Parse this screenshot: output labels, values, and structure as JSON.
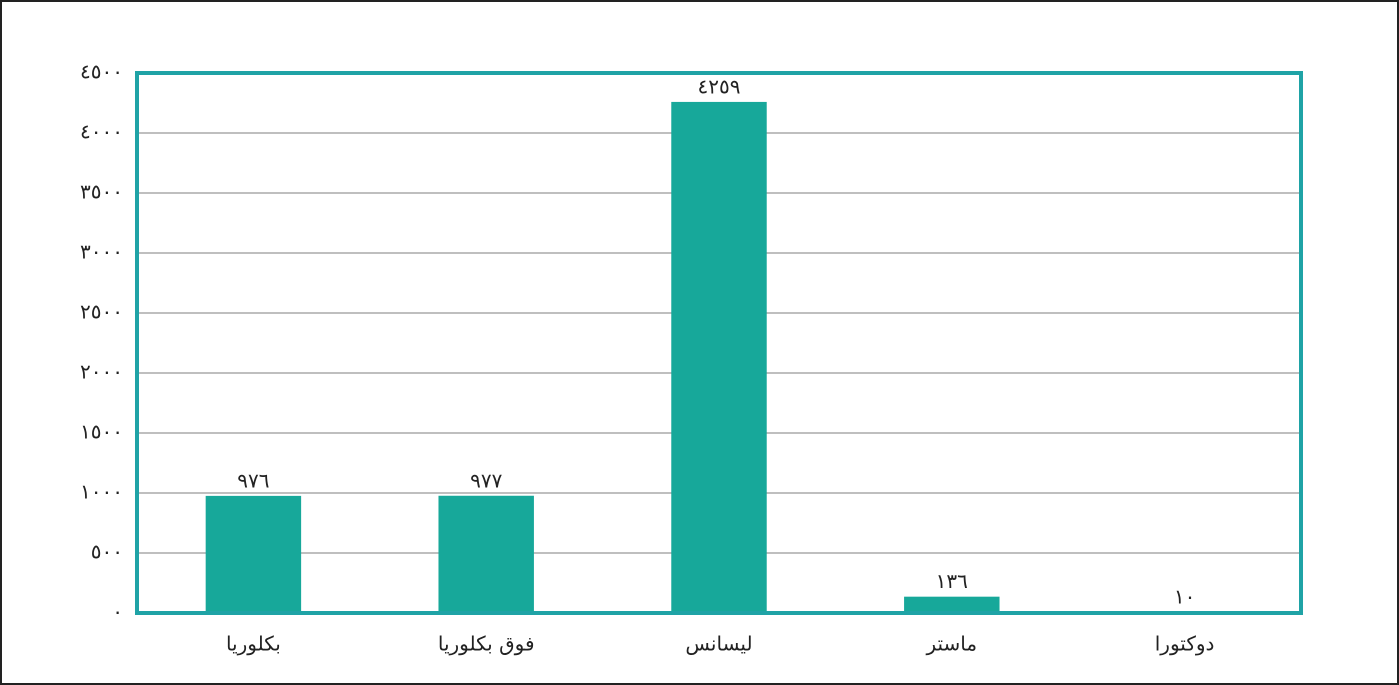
{
  "chart_data": {
    "type": "bar",
    "categories": [
      "بكلوريا",
      "فوق بكلوريا",
      "ليسانس",
      "ماستر",
      "دوكتورا"
    ],
    "values": [
      976,
      977,
      4259,
      136,
      10
    ],
    "value_labels": [
      "٩٧٦",
      "٩٧٧",
      "٤٢٥٩",
      "١٣٦",
      "١٠"
    ],
    "color": "#17a89a",
    "ylim": [
      0,
      4500
    ],
    "yticks": [
      {
        "value": 0,
        "label": "٠"
      },
      {
        "value": 500,
        "label": "٥٠٠"
      },
      {
        "value": 1000,
        "label": "١٠٠٠"
      },
      {
        "value": 1500,
        "label": "١٥٠٠"
      },
      {
        "value": 2000,
        "label": "٢٠٠٠"
      },
      {
        "value": 2500,
        "label": "٢٥٠٠"
      },
      {
        "value": 3000,
        "label": "٣٠٠٠"
      },
      {
        "value": 3500,
        "label": "٣٥٠٠"
      },
      {
        "value": 4000,
        "label": "٤٠٠٠"
      },
      {
        "value": 4500,
        "label": "٤٥٠٠"
      }
    ],
    "grid": true
  }
}
